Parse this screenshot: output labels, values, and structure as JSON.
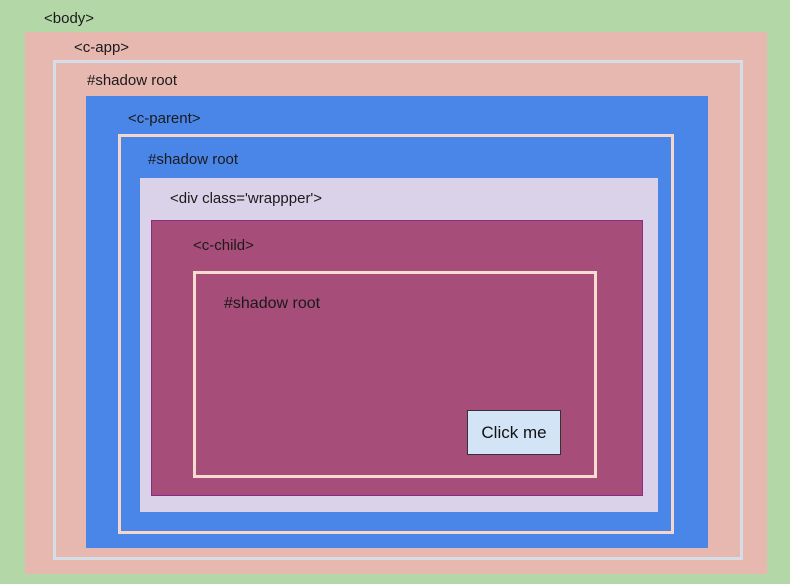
{
  "colors": {
    "body": "#b4d7a8",
    "app": "#e6b8af",
    "parent": "#4a86e8",
    "wrapper": "#d9d2e9",
    "child": "#a64d79"
  },
  "labels": {
    "body": "<body>",
    "app": "<c-app>",
    "app_shadow": "#shadow root",
    "parent": "<c-parent>",
    "parent_shadow": "#shadow root",
    "wrapper": "<div class='wrappper'>",
    "child": "<c-child>",
    "child_shadow": "#shadow root"
  },
  "button": {
    "label": "Click me"
  }
}
